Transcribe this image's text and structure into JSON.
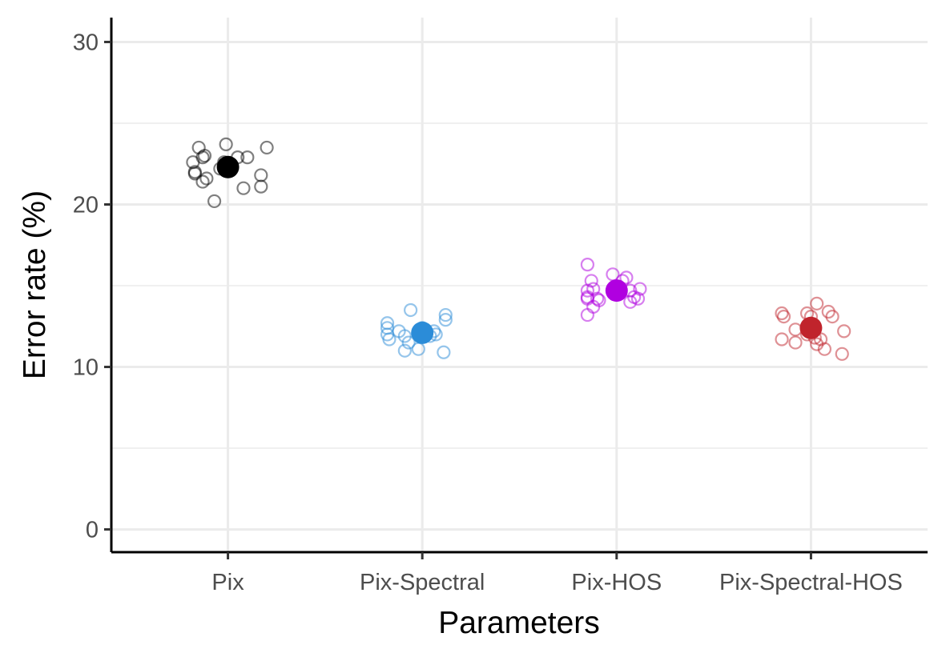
{
  "chart_data": {
    "type": "scatter",
    "xlabel": "Parameters",
    "ylabel": "Error rate (%)",
    "categories": [
      "Pix",
      "Pix-Spectral",
      "Pix-HOS",
      "Pix-Spectral-HOS"
    ],
    "ylim": [
      -1.4,
      31.5
    ],
    "yticks": [
      0,
      10,
      20,
      30
    ],
    "grid": true,
    "legend": "none",
    "series": [
      {
        "color": "#000000",
        "mean": 22.3,
        "points": [
          {
            "x": -0.15,
            "y": 23.5
          },
          {
            "x": -0.12,
            "y": 23.0
          },
          {
            "x": -0.13,
            "y": 22.9
          },
          {
            "x": -0.18,
            "y": 22.6
          },
          {
            "x": -0.17,
            "y": 22.0
          },
          {
            "x": -0.17,
            "y": 21.9
          },
          {
            "x": -0.11,
            "y": 21.6
          },
          {
            "x": -0.13,
            "y": 21.4
          },
          {
            "x": -0.07,
            "y": 20.2
          },
          {
            "x": -0.04,
            "y": 22.2
          },
          {
            "x": -0.02,
            "y": 22.6
          },
          {
            "x": 0.0,
            "y": 22.2
          },
          {
            "x": -0.01,
            "y": 23.7
          },
          {
            "x": 0.05,
            "y": 22.9
          },
          {
            "x": 0.1,
            "y": 22.9
          },
          {
            "x": 0.08,
            "y": 21.0
          },
          {
            "x": 0.17,
            "y": 21.8
          },
          {
            "x": 0.17,
            "y": 21.1
          },
          {
            "x": 0.2,
            "y": 23.5
          }
        ]
      },
      {
        "color": "#2b8cd8",
        "mean": 12.1,
        "points": [
          {
            "x": -0.18,
            "y": 12.7
          },
          {
            "x": -0.18,
            "y": 12.4
          },
          {
            "x": -0.18,
            "y": 12.0
          },
          {
            "x": -0.17,
            "y": 11.7
          },
          {
            "x": -0.12,
            "y": 12.2
          },
          {
            "x": -0.09,
            "y": 11.9
          },
          {
            "x": -0.07,
            "y": 11.5
          },
          {
            "x": -0.09,
            "y": 11.0
          },
          {
            "x": -0.06,
            "y": 13.5
          },
          {
            "x": -0.02,
            "y": 11.1
          },
          {
            "x": 0.0,
            "y": 12.4
          },
          {
            "x": 0.02,
            "y": 12.2
          },
          {
            "x": 0.04,
            "y": 11.9
          },
          {
            "x": 0.06,
            "y": 12.2
          },
          {
            "x": 0.07,
            "y": 12.0
          },
          {
            "x": 0.12,
            "y": 13.2
          },
          {
            "x": 0.12,
            "y": 12.9
          },
          {
            "x": 0.11,
            "y": 10.9
          }
        ]
      },
      {
        "color": "#b000e0",
        "mean": 14.7,
        "points": [
          {
            "x": -0.15,
            "y": 14.7
          },
          {
            "x": -0.15,
            "y": 14.3
          },
          {
            "x": -0.12,
            "y": 14.8
          },
          {
            "x": -0.15,
            "y": 14.2
          },
          {
            "x": -0.13,
            "y": 15.3
          },
          {
            "x": -0.15,
            "y": 16.3
          },
          {
            "x": -0.12,
            "y": 13.7
          },
          {
            "x": -0.15,
            "y": 13.2
          },
          {
            "x": -0.1,
            "y": 14.2
          },
          {
            "x": -0.09,
            "y": 14.1
          },
          {
            "x": -0.02,
            "y": 15.7
          },
          {
            "x": 0.03,
            "y": 15.3
          },
          {
            "x": 0.05,
            "y": 15.5
          },
          {
            "x": 0.07,
            "y": 14.7
          },
          {
            "x": 0.09,
            "y": 14.3
          },
          {
            "x": 0.07,
            "y": 14.0
          },
          {
            "x": 0.11,
            "y": 14.2
          },
          {
            "x": 0.12,
            "y": 14.8
          }
        ]
      },
      {
        "color": "#c0242c",
        "mean": 12.4,
        "points": [
          {
            "x": -0.15,
            "y": 13.3
          },
          {
            "x": -0.14,
            "y": 13.1
          },
          {
            "x": -0.15,
            "y": 11.7
          },
          {
            "x": -0.08,
            "y": 11.5
          },
          {
            "x": -0.08,
            "y": 12.3
          },
          {
            "x": -0.02,
            "y": 12.0
          },
          {
            "x": -0.02,
            "y": 13.3
          },
          {
            "x": 0.0,
            "y": 13.1
          },
          {
            "x": 0.02,
            "y": 11.8
          },
          {
            "x": 0.03,
            "y": 11.4
          },
          {
            "x": 0.05,
            "y": 11.7
          },
          {
            "x": 0.03,
            "y": 13.9
          },
          {
            "x": 0.07,
            "y": 11.1
          },
          {
            "x": 0.09,
            "y": 13.4
          },
          {
            "x": 0.11,
            "y": 13.1
          },
          {
            "x": 0.17,
            "y": 12.2
          },
          {
            "x": 0.16,
            "y": 10.8
          }
        ]
      }
    ]
  }
}
